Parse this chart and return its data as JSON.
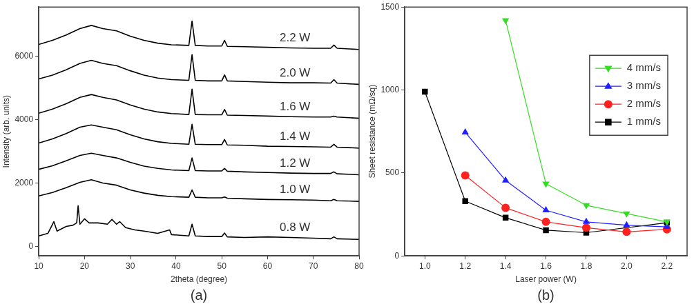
{
  "chart_data": [
    {
      "type": "line",
      "xlabel": "2theta (degree)",
      "ylabel": "Intensity (arb. units)",
      "annotations": [
        "(a)"
      ],
      "xlim": [
        10,
        80
      ],
      "xticks": [
        10,
        20,
        30,
        40,
        50,
        60,
        70,
        80
      ],
      "ylim": [
        -300,
        7550
      ],
      "yticks": [
        0,
        2000,
        4000,
        6000
      ],
      "grid": false,
      "marker": "none",
      "line_style": "solid",
      "x": [
        10,
        13,
        16,
        19,
        21.5,
        24,
        27,
        30,
        33,
        36,
        39,
        42.8,
        43.5,
        44.2,
        47,
        50,
        50.6,
        51.2,
        55,
        60,
        65,
        70,
        73.8,
        74.5,
        75.2,
        80
      ],
      "series": [
        {
          "name": "2.2 W",
          "color": "#000000",
          "values": [
            6370,
            6500,
            6670,
            6870,
            6970,
            6870,
            6800,
            6630,
            6500,
            6410,
            6360,
            6340,
            7110,
            6340,
            6320,
            6320,
            6500,
            6310,
            6300,
            6280,
            6260,
            6250,
            6250,
            6350,
            6250,
            6210
          ]
        },
        {
          "name": "2.0 W",
          "color": "#000000",
          "values": [
            5280,
            5400,
            5570,
            5770,
            5870,
            5770,
            5700,
            5540,
            5400,
            5310,
            5260,
            5240,
            6050,
            5240,
            5220,
            5220,
            5410,
            5220,
            5200,
            5180,
            5160,
            5160,
            5150,
            5260,
            5150,
            5110
          ]
        },
        {
          "name": "1.6 W",
          "color": "#000000",
          "values": [
            4200,
            4330,
            4500,
            4700,
            4790,
            4700,
            4620,
            4460,
            4330,
            4240,
            4190,
            4160,
            4960,
            4160,
            4150,
            4150,
            4320,
            4140,
            4130,
            4110,
            4090,
            4080,
            4080,
            4110,
            4080,
            4040
          ]
        },
        {
          "name": "1.4 W",
          "color": "#000000",
          "values": [
            3260,
            3390,
            3560,
            3760,
            3830,
            3760,
            3680,
            3520,
            3390,
            3300,
            3250,
            3220,
            3850,
            3220,
            3210,
            3210,
            3370,
            3200,
            3190,
            3160,
            3150,
            3140,
            3130,
            3220,
            3130,
            3100
          ]
        },
        {
          "name": "1.2 W",
          "color": "#000000",
          "values": [
            2430,
            2540,
            2700,
            2870,
            2940,
            2870,
            2790,
            2650,
            2530,
            2460,
            2410,
            2390,
            2790,
            2390,
            2380,
            2380,
            2460,
            2370,
            2350,
            2330,
            2310,
            2300,
            2300,
            2350,
            2290,
            2260
          ]
        },
        {
          "name": "1.0 W",
          "color": "#000000",
          "values": [
            1590,
            1700,
            1850,
            2020,
            2100,
            2000,
            1930,
            1780,
            1680,
            1610,
            1570,
            1550,
            1780,
            1550,
            1530,
            1530,
            1560,
            1520,
            1500,
            1480,
            1470,
            1460,
            1440,
            1480,
            1440,
            1420
          ]
        },
        {
          "name": "0.8 W",
          "color": "#000000",
          "x": [
            10,
            12,
            13.3,
            14,
            16,
            17.5,
            18.3,
            18.6,
            19,
            20,
            21,
            23,
            25,
            26,
            27,
            27.7,
            29,
            31,
            33,
            36,
            38.6,
            39,
            42.8,
            43.5,
            44.2,
            47,
            50,
            50.6,
            51.2,
            55,
            60,
            65,
            70,
            73.8,
            74.5,
            75.2,
            80
          ],
          "values": [
            330,
            410,
            780,
            480,
            630,
            670,
            740,
            1280,
            700,
            870,
            740,
            740,
            700,
            850,
            700,
            780,
            590,
            520,
            480,
            410,
            520,
            370,
            330,
            700,
            330,
            310,
            310,
            420,
            300,
            280,
            300,
            280,
            260,
            240,
            300,
            240,
            220
          ]
        }
      ]
    },
    {
      "type": "line",
      "xlabel": "Laser power (W)",
      "ylabel": "Sheet resistance (mΩ/sq)",
      "annotations": [
        "(b)"
      ],
      "xlim": [
        0.9,
        2.3
      ],
      "xticks": [
        {
          "value": 1,
          "label": "1.0"
        },
        1.2,
        1.4,
        1.6,
        1.8,
        {
          "value": 2,
          "label": "2.0"
        },
        2.2
      ],
      "ylim": [
        0,
        1500
      ],
      "yticks": [
        0,
        500,
        1000,
        1500
      ],
      "grid": false,
      "legend": "top right",
      "line_style": "solid",
      "x": [
        1.0,
        1.2,
        1.4,
        1.6,
        1.8,
        2.0,
        2.2
      ],
      "series": [
        {
          "name": "4 mm/s",
          "color": "#33dd22",
          "marker": "triangle_down",
          "values": [
            null,
            null,
            1420,
            435,
            305,
            255,
            205
          ]
        },
        {
          "name": "3 mm/s",
          "color": "#1f1fff",
          "marker": "triangle",
          "values": [
            null,
            745,
            455,
            275,
            205,
            185,
            175
          ]
        },
        {
          "name": "2 mm/s",
          "color": "#ff2020",
          "marker": "circle",
          "values": [
            null,
            485,
            290,
            205,
            170,
            145,
            160
          ]
        },
        {
          "name": "1 mm/s",
          "color": "#000000",
          "marker": "square",
          "values": [
            990,
            330,
            230,
            155,
            140,
            null,
            200
          ]
        }
      ]
    }
  ]
}
